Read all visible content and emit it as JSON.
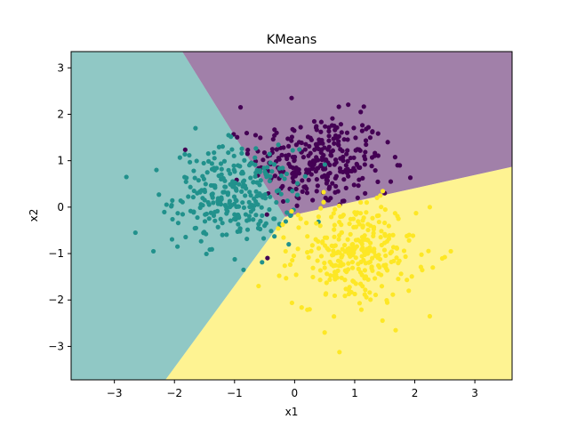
{
  "chart_data": {
    "type": "scatter",
    "title": "KMeans",
    "xlabel": "x1",
    "ylabel": "x2",
    "xlim": [
      -3.72,
      3.62
    ],
    "ylim": [
      -3.72,
      3.35
    ],
    "xticks": [
      -3,
      -2,
      -1,
      0,
      1,
      2,
      3
    ],
    "yticks": [
      -3,
      -2,
      -1,
      0,
      1,
      2,
      3
    ],
    "tick_labels_x": [
      "−3",
      "−2",
      "−1",
      "0",
      "1",
      "2",
      "3"
    ],
    "tick_labels_y": [
      "−3",
      "−2",
      "−1",
      "0",
      "1",
      "2",
      "3"
    ],
    "grid": false,
    "legend": "none",
    "decision_regions": [
      {
        "cluster": 0,
        "color": "#440154",
        "fill_opacity": 0.5,
        "polygon": [
          [
            -1.87,
            3.35
          ],
          [
            3.62,
            3.35
          ],
          [
            3.62,
            0.87
          ],
          [
            -0.16,
            -0.21
          ]
        ]
      },
      {
        "cluster": 1,
        "color": "#21918c",
        "fill_opacity": 0.5,
        "polygon": [
          [
            -3.72,
            3.35
          ],
          [
            -1.87,
            3.35
          ],
          [
            -0.16,
            -0.21
          ],
          [
            -2.15,
            -3.72
          ],
          [
            -3.72,
            -3.72
          ]
        ]
      },
      {
        "cluster": 2,
        "color": "#fde725",
        "fill_opacity": 0.5,
        "polygon": [
          [
            -0.16,
            -0.21
          ],
          [
            3.62,
            0.87
          ],
          [
            3.62,
            -3.72
          ],
          [
            -2.15,
            -3.72
          ]
        ]
      }
    ],
    "series": [
      {
        "cluster": 0,
        "color": "#440154",
        "center": [
          0.4,
          1.0
        ],
        "spread": [
          0.55,
          0.5
        ],
        "count": 300,
        "points": [
          [
            -0.05,
            2.35
          ],
          [
            -0.9,
            2.15
          ],
          [
            1.1,
            2.05
          ],
          [
            -0.3,
            1.6
          ],
          [
            1.55,
            1.4
          ],
          [
            -0.65,
            1.55
          ],
          [
            1.75,
            0.9
          ],
          [
            1.5,
            0.3
          ],
          [
            0.3,
            0.15
          ],
          [
            -0.2,
            0.45
          ],
          [
            1.05,
            0.2
          ],
          [
            1.6,
            0.55
          ]
        ]
      },
      {
        "cluster": 1,
        "color": "#21918c",
        "center": [
          -1.0,
          0.25
        ],
        "spread": [
          0.5,
          0.5
        ],
        "count": 300,
        "points": [
          [
            -2.8,
            0.65
          ],
          [
            -2.65,
            -0.55
          ],
          [
            -1.65,
            1.7
          ],
          [
            -1.1,
            1.55
          ],
          [
            -2.35,
            -0.95
          ],
          [
            -0.85,
            -1.35
          ],
          [
            -0.5,
            -0.4
          ],
          [
            -0.35,
            -0.25
          ],
          [
            -2.3,
            0.8
          ],
          [
            -1.95,
            -0.85
          ]
        ]
      },
      {
        "cluster": 2,
        "color": "#fde725",
        "center": [
          1.0,
          -1.0
        ],
        "spread": [
          0.5,
          0.55
        ],
        "count": 300,
        "points": [
          [
            -0.6,
            -1.7
          ],
          [
            0.5,
            -2.7
          ],
          [
            2.25,
            -2.35
          ],
          [
            2.6,
            -0.95
          ],
          [
            2.25,
            0.0
          ],
          [
            2.3,
            -1.3
          ],
          [
            -0.15,
            -0.95
          ],
          [
            0.25,
            -2.2
          ],
          [
            1.9,
            -1.8
          ],
          [
            1.2,
            0.1
          ],
          [
            0.1,
            -0.25
          ]
        ]
      }
    ]
  }
}
